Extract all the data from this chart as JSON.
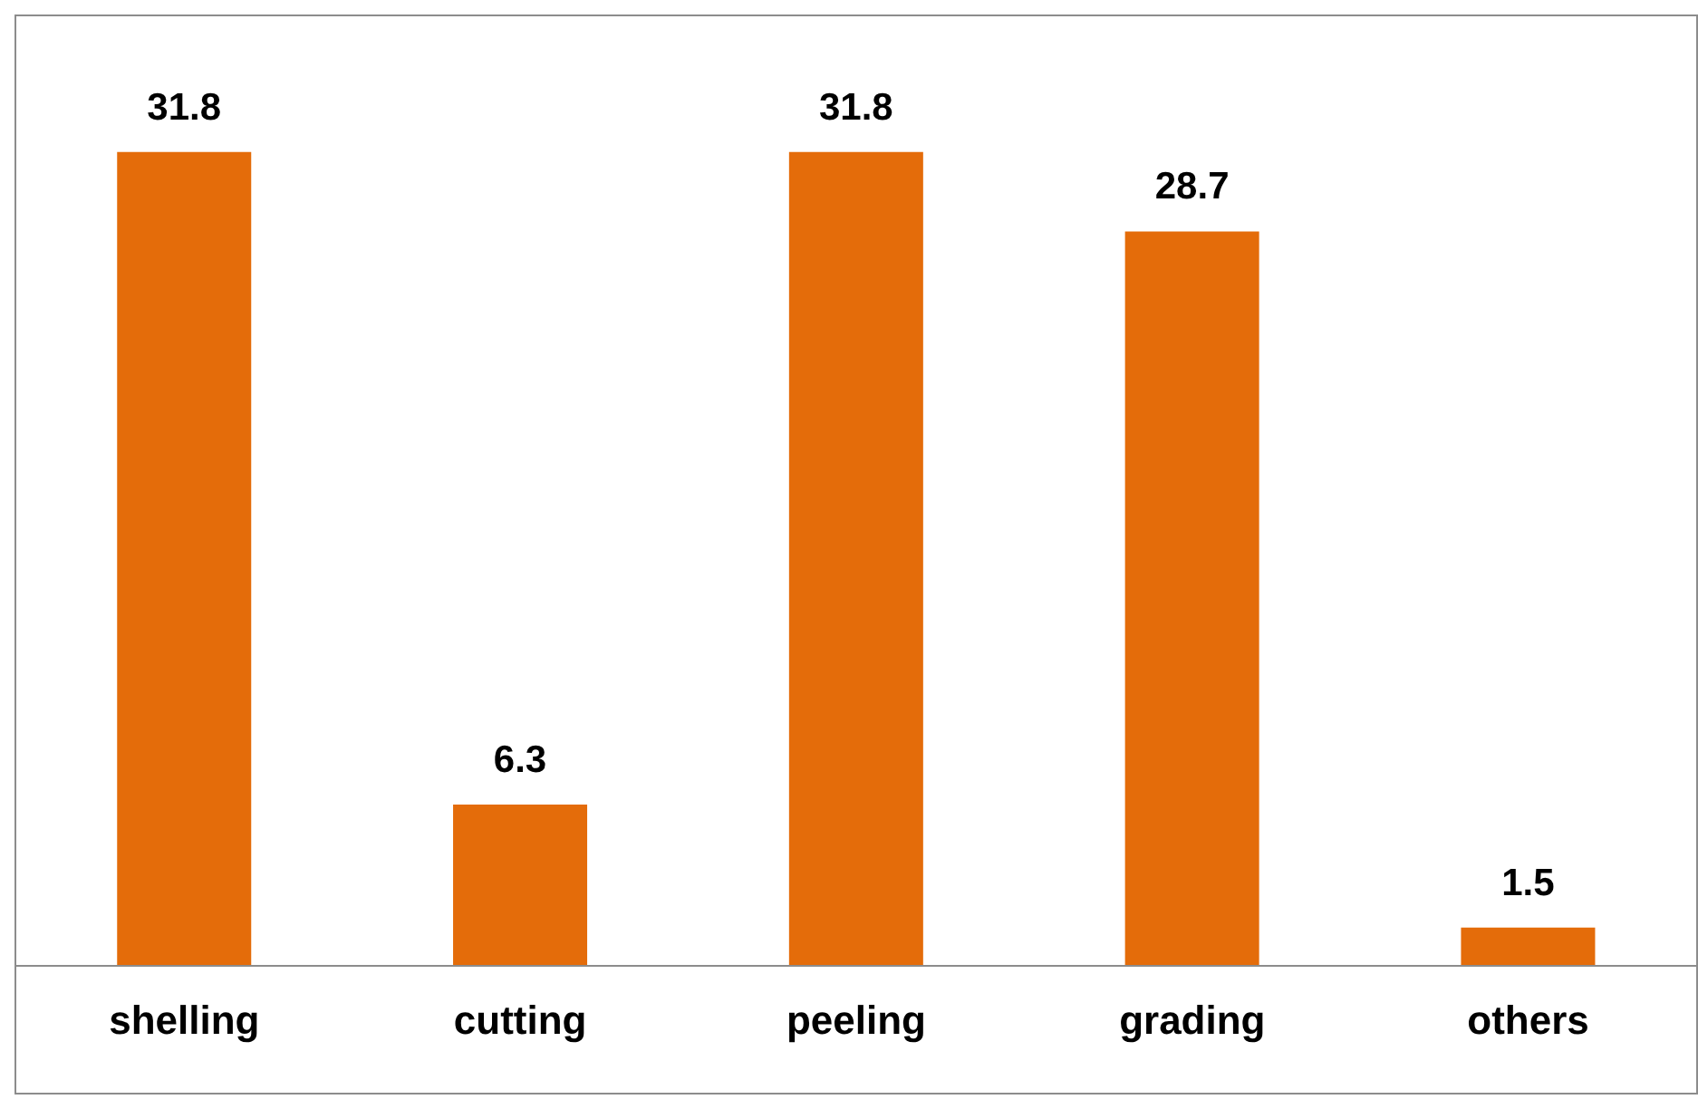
{
  "chart_data": {
    "type": "bar",
    "categories": [
      "shelling",
      "cutting",
      "peeling",
      "grading",
      "others"
    ],
    "values": [
      31.8,
      6.3,
      31.8,
      28.7,
      1.5
    ],
    "color": "#e46c0a",
    "data_labels": true,
    "grid": false,
    "legend": false
  }
}
